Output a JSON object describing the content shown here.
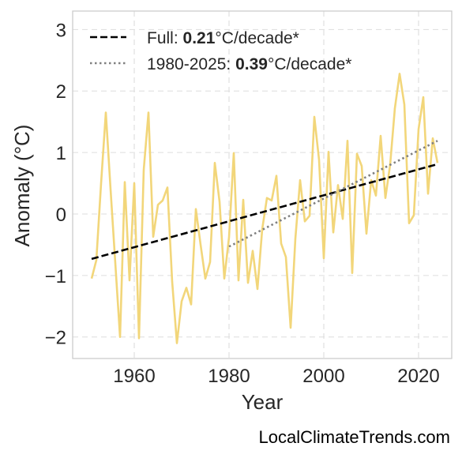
{
  "colors": {
    "anomaly_line": "#F2D67A",
    "full_trend": "#000000",
    "recent_trend": "#808080",
    "grid": "#DDDDDD",
    "frame": "#CCCCCC"
  },
  "legend": {
    "full": {
      "prefix": "Full: ",
      "rate": "0.21",
      "suffix": "°C/decade*"
    },
    "recent": {
      "prefix": "1980-2025: ",
      "rate": "0.39",
      "suffix": "°C/decade*"
    }
  },
  "credit": "LocalClimateTrends.com",
  "chart_data": {
    "type": "line",
    "xlabel": "Year",
    "ylabel": "Anomaly (°C)",
    "xlim": [
      1947,
      2027
    ],
    "ylim": [
      -2.35,
      3.3
    ],
    "xticks": [
      1960,
      1980,
      2000,
      2020
    ],
    "xtick_labels": [
      "1960",
      "1980",
      "2000",
      "2020"
    ],
    "yticks": [
      -2,
      -1,
      0,
      1,
      2,
      3
    ],
    "ytick_labels": [
      "−2",
      "−1",
      "0",
      "1",
      "2",
      "3"
    ],
    "grid": true,
    "legend_position": "top-left",
    "series": [
      {
        "name": "",
        "style": "solid",
        "x": [
          1951,
          1952,
          1953,
          1954,
          1955,
          1956,
          1957,
          1958,
          1959,
          1960,
          1961,
          1962,
          1963,
          1964,
          1965,
          1966,
          1967,
          1968,
          1969,
          1970,
          1971,
          1972,
          1973,
          1974,
          1975,
          1976,
          1977,
          1978,
          1979,
          1980,
          1981,
          1982,
          1983,
          1984,
          1985,
          1986,
          1987,
          1988,
          1989,
          1990,
          1991,
          1992,
          1993,
          1994,
          1995,
          1996,
          1997,
          1998,
          1999,
          2000,
          2001,
          2002,
          2003,
          2004,
          2005,
          2006,
          2007,
          2008,
          2009,
          2010,
          2011,
          2012,
          2013,
          2014,
          2015,
          2016,
          2017,
          2018,
          2019,
          2020,
          2021,
          2022,
          2023,
          2024
        ],
        "y": [
          -1.05,
          -0.75,
          0.5,
          1.65,
          0.4,
          -0.8,
          -2.0,
          0.52,
          -1.08,
          0.5,
          -2.02,
          0.72,
          1.65,
          -0.37,
          0.15,
          0.22,
          0.43,
          -1.1,
          -2.1,
          -1.42,
          -1.2,
          -1.47,
          0.08,
          -0.5,
          -1.05,
          -0.78,
          0.83,
          0.2,
          -1.05,
          -0.38,
          0.99,
          -1.08,
          0.23,
          -1.12,
          -0.6,
          -1.22,
          -0.25,
          0.26,
          0.22,
          0.62,
          -0.48,
          -0.7,
          -1.85,
          -0.4,
          0.55,
          -0.12,
          -0.03,
          1.58,
          0.88,
          -0.72,
          1.01,
          -0.3,
          0.47,
          -0.08,
          1.19,
          -0.96,
          0.98,
          0.78,
          -0.32,
          0.55,
          0.3,
          1.27,
          0.26,
          0.8,
          1.72,
          2.28,
          1.78,
          -0.15,
          -0.02,
          1.38,
          1.9,
          0.33,
          1.23,
          0.83
        ]
      },
      {
        "name": "Full",
        "style": "dashed",
        "x": [
          1951,
          2024
        ],
        "y": [
          -0.73,
          0.81
        ]
      },
      {
        "name": "1980-2025",
        "style": "dotted",
        "x": [
          1980,
          2024
        ],
        "y": [
          -0.53,
          1.19
        ]
      }
    ]
  }
}
